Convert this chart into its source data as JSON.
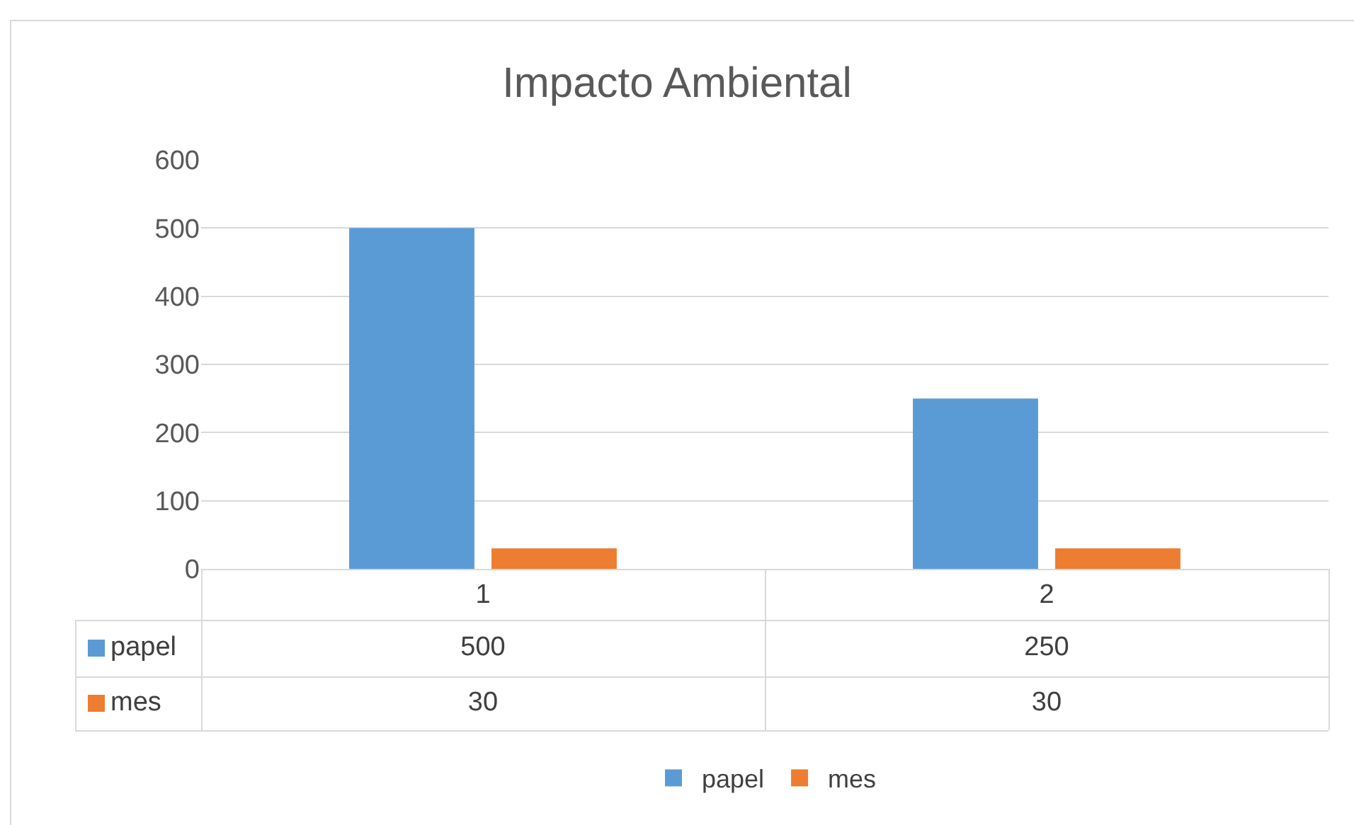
{
  "chart_data": {
    "type": "bar",
    "title": "Impacto Ambiental",
    "categories": [
      "1",
      "2"
    ],
    "series": [
      {
        "name": "papel",
        "color": "#5b9bd5",
        "values": [
          500,
          250
        ]
      },
      {
        "name": "mes",
        "color": "#ed7d31",
        "values": [
          30,
          30
        ]
      }
    ],
    "ylim": [
      0,
      600
    ],
    "yticks": [
      0,
      100,
      200,
      300,
      400,
      500,
      600
    ],
    "grid": "y",
    "legend": "bottom",
    "data_labels": true
  }
}
